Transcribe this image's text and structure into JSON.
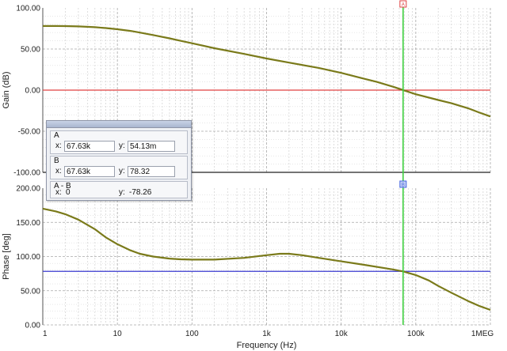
{
  "chart_data": [
    {
      "type": "line",
      "panel": "top",
      "title": "",
      "xlabel": "",
      "ylabel": "Gain (dB)",
      "xscale": "log",
      "xlim": [
        1,
        1000000
      ],
      "ylim": [
        -100,
        100
      ],
      "yticks": [
        "100.00",
        "50.00",
        "0.00",
        "-50.00",
        "-100.00"
      ],
      "grid": true,
      "series": [
        {
          "name": "",
          "color": "#7a7a1a",
          "x": [
            1,
            1.5,
            2,
            3,
            5,
            7,
            10,
            15,
            20,
            30,
            50,
            70,
            100,
            200,
            500,
            1000,
            2000,
            5000,
            10000,
            20000,
            30000,
            50000,
            67630,
            100000,
            200000,
            300000,
            500000,
            700000,
            1000000
          ],
          "y": [
            78,
            78,
            77.9,
            77.5,
            76.5,
            75.5,
            74,
            72,
            70,
            67,
            63,
            60,
            57,
            51,
            44,
            38.5,
            33.5,
            27,
            21,
            14,
            10,
            4,
            0.05,
            -5,
            -12,
            -16,
            -22,
            -27,
            -32
          ]
        }
      ],
      "reference_line": {
        "y": 0,
        "color": "#e04040"
      }
    },
    {
      "type": "line",
      "panel": "bottom",
      "title": "",
      "xlabel": "Frequency (Hz)",
      "ylabel": "Phase [deg]",
      "xscale": "log",
      "xlim": [
        1,
        1000000
      ],
      "ylim": [
        0,
        200
      ],
      "xticks": [
        "1",
        "10",
        "100",
        "1k",
        "10k",
        "100k",
        "1MEG"
      ],
      "yticks": [
        "200.00",
        "150.00",
        "100.00",
        "50.00",
        "0.00"
      ],
      "grid": true,
      "series": [
        {
          "name": "",
          "color": "#7a7a1a",
          "x": [
            1,
            1.5,
            2,
            3,
            5,
            7,
            10,
            15,
            20,
            30,
            50,
            70,
            100,
            200,
            500,
            1000,
            1500,
            2000,
            3000,
            5000,
            10000,
            20000,
            50000,
            67630,
            100000,
            150000,
            200000,
            300000,
            500000,
            700000,
            1000000
          ],
          "y": [
            170,
            166,
            162,
            154,
            140,
            128,
            118,
            109,
            104,
            100,
            97,
            96,
            95.5,
            95.5,
            98,
            102,
            104,
            104,
            102,
            98,
            93,
            88,
            81,
            78.3,
            73,
            65,
            57,
            47,
            35,
            28,
            22
          ]
        }
      ],
      "reference_line": {
        "y": 78.32,
        "color": "#3a3ad0"
      }
    }
  ],
  "cursor": {
    "x": 67630,
    "color": "#40d040",
    "marker_top": "A",
    "marker_bottom": "B",
    "marker_top_color": "#e04040",
    "marker_bottom_color": "#4060e0"
  },
  "cursor_panel": {
    "a": {
      "label": "A",
      "x_label": "x:",
      "x_value": "67.63k",
      "y_label": "y:",
      "y_value": "54.13m"
    },
    "b": {
      "label": "B",
      "x_label": "x:",
      "x_value": "67.63k",
      "y_label": "y:",
      "y_value": "78.32"
    },
    "diff": {
      "label": "A - B",
      "x_label": "x:",
      "x_value": "0",
      "y_label": "y:",
      "y_value": "-78.26"
    }
  }
}
